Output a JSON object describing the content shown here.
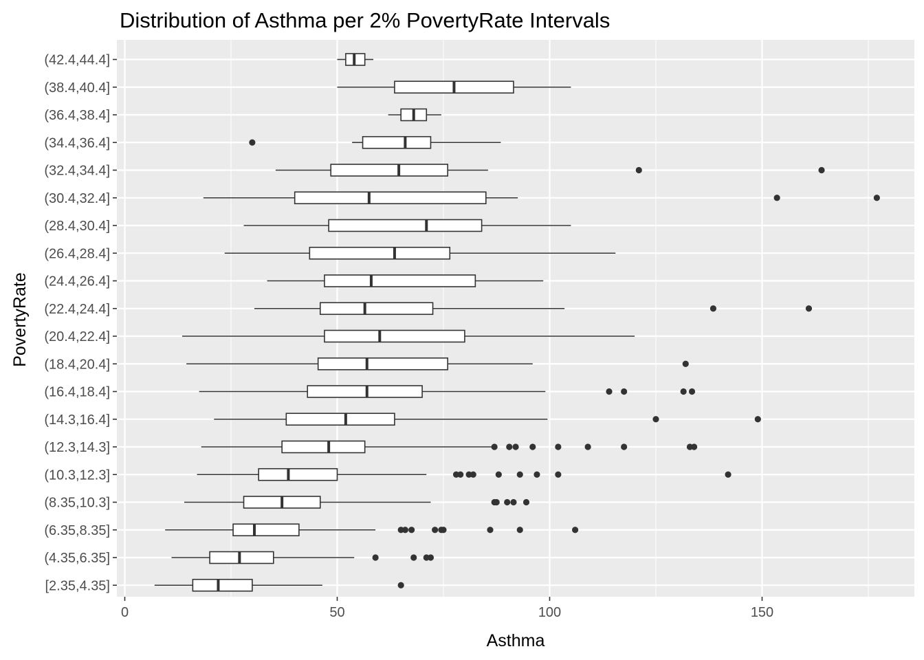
{
  "chart_data": {
    "type": "boxplot",
    "orientation": "horizontal",
    "title": "Distribution of Asthma per 2% PovertyRate Intervals",
    "xlabel": "Asthma",
    "ylabel": "PovertyRate",
    "xlim": [
      -2,
      182
    ],
    "xticks": [
      0,
      50,
      100,
      150
    ],
    "grid": true,
    "legend": "none",
    "colors": {
      "panel": "#ebebeb",
      "grid": "#ffffff",
      "box_fill": "#ffffff",
      "box_line": "#333333",
      "point": "#333333"
    },
    "groups": [
      {
        "label": "[2.35,4.35]",
        "whisker_low": 7,
        "q1": 16,
        "median": 22,
        "q3": 30,
        "whisker_high": 46.5,
        "outliers": [
          65
        ]
      },
      {
        "label": "(4.35,6.35]",
        "whisker_low": 11,
        "q1": 20,
        "median": 27,
        "q3": 35,
        "whisker_high": 54,
        "outliers": [
          59,
          68,
          71,
          72
        ]
      },
      {
        "label": "(6.35,8.35]",
        "whisker_low": 9.5,
        "q1": 25.5,
        "median": 30.5,
        "q3": 41,
        "whisker_high": 59,
        "outliers": [
          65,
          66,
          67.5,
          73,
          74.5,
          75,
          86,
          93,
          106
        ]
      },
      {
        "label": "(8.35,10.3]",
        "whisker_low": 14,
        "q1": 28,
        "median": 37,
        "q3": 46,
        "whisker_high": 72,
        "outliers": [
          87,
          87.5,
          90,
          91.5,
          94.5
        ]
      },
      {
        "label": "(10.3,12.3]",
        "whisker_low": 17,
        "q1": 31.5,
        "median": 38.5,
        "q3": 50,
        "whisker_high": 71,
        "outliers": [
          78,
          79,
          81,
          82,
          88,
          93,
          97,
          102,
          142
        ]
      },
      {
        "label": "(12.3,14.3]",
        "whisker_low": 18,
        "q1": 37,
        "median": 48,
        "q3": 56.5,
        "whisker_high": 87,
        "outliers": [
          87,
          90.5,
          92,
          96,
          102,
          109,
          117.5,
          133,
          134
        ]
      },
      {
        "label": "(14.3,16.4]",
        "whisker_low": 21,
        "q1": 38,
        "median": 52,
        "q3": 63.5,
        "whisker_high": 99.5,
        "outliers": [
          125,
          149
        ]
      },
      {
        "label": "(16.4,18.4]",
        "whisker_low": 17.5,
        "q1": 43,
        "median": 57,
        "q3": 70,
        "whisker_high": 99,
        "outliers": [
          114,
          117.5,
          131.5,
          133.5
        ]
      },
      {
        "label": "(18.4,20.4]",
        "whisker_low": 14.5,
        "q1": 45.5,
        "median": 57,
        "q3": 76,
        "whisker_high": 96,
        "outliers": [
          132
        ]
      },
      {
        "label": "(20.4,22.4]",
        "whisker_low": 13.5,
        "q1": 47,
        "median": 60,
        "q3": 80,
        "whisker_high": 120,
        "outliers": []
      },
      {
        "label": "(22.4,24.4]",
        "whisker_low": 30.5,
        "q1": 46,
        "median": 56.5,
        "q3": 72.5,
        "whisker_high": 103.5,
        "outliers": [
          138.5,
          161
        ]
      },
      {
        "label": "(24.4,26.4]",
        "whisker_low": 33.5,
        "q1": 47,
        "median": 58,
        "q3": 82.5,
        "whisker_high": 98.5,
        "outliers": []
      },
      {
        "label": "(26.4,28.4]",
        "whisker_low": 23.5,
        "q1": 43.5,
        "median": 63.5,
        "q3": 76.5,
        "whisker_high": 115.5,
        "outliers": []
      },
      {
        "label": "(28.4,30.4]",
        "whisker_low": 28,
        "q1": 48,
        "median": 71,
        "q3": 84,
        "whisker_high": 105,
        "outliers": []
      },
      {
        "label": "(30.4,32.4]",
        "whisker_low": 18.5,
        "q1": 40,
        "median": 57.5,
        "q3": 85,
        "whisker_high": 92.5,
        "outliers": [
          153.5,
          177
        ]
      },
      {
        "label": "(32.4,34.4]",
        "whisker_low": 35.5,
        "q1": 48.5,
        "median": 64.5,
        "q3": 76,
        "whisker_high": 85.5,
        "outliers": [
          121,
          164
        ]
      },
      {
        "label": "(34.4,36.4]",
        "whisker_low": 53.5,
        "q1": 56,
        "median": 66,
        "q3": 72,
        "whisker_high": 88.5,
        "outliers": [
          30
        ]
      },
      {
        "label": "(36.4,38.4]",
        "whisker_low": 62,
        "q1": 65,
        "median": 68,
        "q3": 71,
        "whisker_high": 74.5,
        "outliers": []
      },
      {
        "label": "(38.4,40.4]",
        "whisker_low": 50,
        "q1": 63.5,
        "median": 77.5,
        "q3": 91.5,
        "whisker_high": 105,
        "outliers": []
      },
      {
        "label": "(42.4,44.4]",
        "whisker_low": 50,
        "q1": 52,
        "median": 54,
        "q3": 56.5,
        "whisker_high": 58.5,
        "outliers": []
      }
    ]
  }
}
